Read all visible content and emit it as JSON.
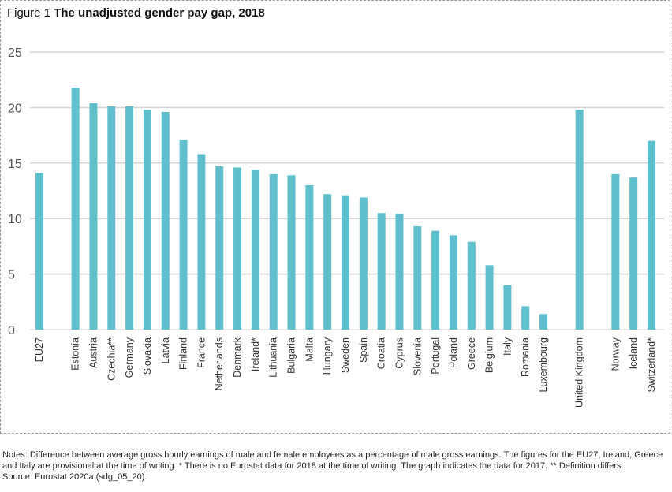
{
  "chart_data": {
    "type": "bar",
    "figure_label": "Figure 1",
    "title": "The unadjusted gender pay gap, 2018",
    "xlabel": "",
    "ylabel": "",
    "ylim": [
      0,
      25
    ],
    "yticks": [
      0,
      5,
      10,
      15,
      20,
      25
    ],
    "grid": true,
    "bar_color": "#5fbfcd",
    "categories": [
      "EU27",
      "Estonia",
      "Austria",
      "Czechia**",
      "Germany",
      "Slovakia",
      "Latvia",
      "Finland",
      "France",
      "Netherlands",
      "Denmark",
      "Ireland*",
      "Lithuania",
      "Bulgaria",
      "Malta",
      "Hungary",
      "Sweden",
      "Spain",
      "Croatia",
      "Cyprus",
      "Slovenia",
      "Portugal",
      "Poland",
      "Greece",
      "Belgium",
      "Italy",
      "Romania",
      "Luxembourg",
      "United Kingdom",
      "Norway",
      "Iceland",
      "Switzerland*"
    ],
    "values": [
      14.1,
      21.8,
      20.4,
      20.1,
      20.1,
      19.8,
      19.6,
      17.1,
      15.8,
      14.7,
      14.6,
      14.4,
      14.0,
      13.9,
      13.0,
      12.2,
      12.1,
      11.9,
      10.5,
      10.4,
      9.3,
      8.9,
      8.5,
      7.9,
      5.8,
      4.0,
      2.1,
      1.4,
      19.8,
      14.0,
      13.7,
      17.0
    ]
  },
  "notes": {
    "text": "Notes: Difference between average gross hourly earnings of male and female employees as a percentage of male gross earnings. The figures for the EU27, Ireland, Greece and Italy are provisional at the time of writing. * There is no Eurostat data for 2018 at the time of writing. The graph indicates the data for 2017. ** Definition differs.",
    "source": "Source: Eurostat 2020a (sdg_05_20)."
  }
}
